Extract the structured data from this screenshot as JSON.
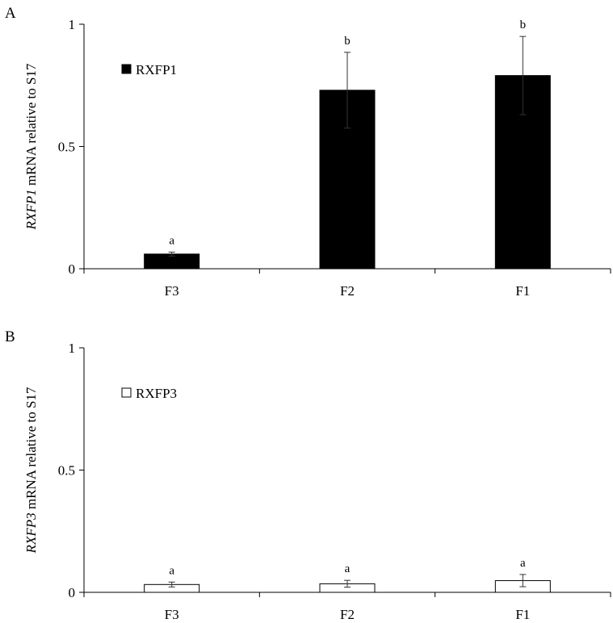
{
  "chart_data": [
    {
      "panel": "A",
      "type": "bar",
      "categories": [
        "F3",
        "F2",
        "F1"
      ],
      "series": [
        {
          "name": "RXFP1",
          "values": [
            0.06,
            0.73,
            0.79
          ],
          "errors": [
            0.008,
            0.155,
            0.16
          ],
          "significance": [
            "a",
            "b",
            "b"
          ],
          "fill": "#000000"
        }
      ],
      "ylabel_italic": "RXFP1",
      "ylabel_rest": " mRNA relative to S17",
      "ylim": [
        0,
        1
      ],
      "yticks": [
        0,
        0.5,
        1
      ],
      "ytick_labels": [
        "0",
        "0.5",
        "1"
      ],
      "grid": false,
      "legend_position": "top-left"
    },
    {
      "panel": "B",
      "type": "bar",
      "categories": [
        "F3",
        "F2",
        "F1"
      ],
      "series": [
        {
          "name": "RXFP3",
          "values": [
            0.032,
            0.035,
            0.048
          ],
          "errors": [
            0.01,
            0.014,
            0.025
          ],
          "significance": [
            "a",
            "a",
            "a"
          ],
          "fill": "#ffffff"
        }
      ],
      "ylabel_italic": "RXFP3",
      "ylabel_rest": " mRNA relative to S17",
      "ylim": [
        0,
        1
      ],
      "yticks": [
        0,
        0.5,
        1
      ],
      "ytick_labels": [
        "0",
        "0.5",
        "1"
      ],
      "grid": false,
      "legend_position": "top-left"
    }
  ]
}
